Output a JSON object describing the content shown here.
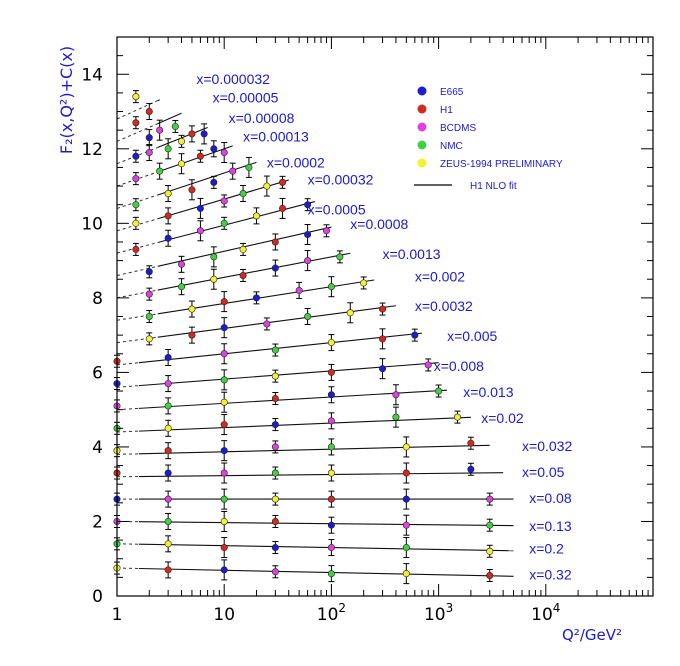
{
  "chart_data": {
    "type": "scatter",
    "title": "",
    "xlabel": "Q²/GeV²",
    "ylabel": "F₂(x,Q²)+C(x)",
    "x_scale": "log",
    "xlim": [
      1,
      100000
    ],
    "ylim": [
      0,
      15
    ],
    "x_ticks": [
      {
        "value": 1,
        "label": "1",
        "sup": ""
      },
      {
        "value": 10,
        "label": "10",
        "sup": ""
      },
      {
        "value": 100,
        "label": "10",
        "sup": "2"
      },
      {
        "value": 1000,
        "label": "10",
        "sup": "3"
      },
      {
        "value": 10000,
        "label": "10",
        "sup": "4"
      }
    ],
    "y_ticks": [
      0,
      2,
      4,
      6,
      8,
      10,
      12,
      14
    ],
    "legend_position": "top-right",
    "legend": [
      {
        "name": "E665",
        "color": "#1c1cd0",
        "kind": "dot"
      },
      {
        "name": "H1",
        "color": "#d42a1e",
        "kind": "dot"
      },
      {
        "name": "BCDMS",
        "color": "#e040e0",
        "kind": "dot"
      },
      {
        "name": "NMC",
        "color": "#40d040",
        "kind": "dot"
      },
      {
        "name": "ZEUS-1994 PRELIMINARY",
        "color": "#f2f230",
        "kind": "dot"
      },
      {
        "name": "H1  NLO  fit",
        "color": "#000000",
        "kind": "line"
      }
    ],
    "bins": [
      {
        "label": "x=0.000032",
        "q2_range": [
          1.5,
          2.5
        ],
        "fit_at_q2_1": 12.8,
        "slope_per_decade": 1.3,
        "data_q2": [
          1.5,
          2
        ],
        "data_f2": [
          13.4,
          13.0
        ],
        "label_q2": 5.5,
        "label_y": 13.85
      },
      {
        "label": "x=0.00005",
        "q2_range": [
          1.5,
          4
        ],
        "fit_at_q2_1": 12.2,
        "slope_per_decade": 1.25,
        "data_q2": [
          1.5,
          2,
          2.5,
          3.5
        ],
        "data_f2": [
          12.7,
          12.3,
          12.5,
          12.6
        ],
        "label_q2": 7.8,
        "label_y": 13.35
      },
      {
        "label": "x=0.00008",
        "q2_range": [
          1.5,
          7
        ],
        "fit_at_q2_1": 11.6,
        "slope_per_decade": 1.15,
        "data_q2": [
          1.5,
          2,
          3,
          4,
          5,
          6.5
        ],
        "data_f2": [
          11.8,
          11.9,
          12.0,
          12.2,
          12.4,
          12.4
        ],
        "label_q2": 11,
        "label_y": 12.8
      },
      {
        "label": "x=0.00013",
        "q2_range": [
          1.5,
          12
        ],
        "fit_at_q2_1": 11.0,
        "slope_per_decade": 1.0,
        "data_q2": [
          1.5,
          2.5,
          4,
          6,
          8,
          10
        ],
        "data_f2": [
          11.2,
          11.4,
          11.6,
          11.8,
          12.0,
          11.9
        ],
        "label_q2": 15,
        "label_y": 12.3
      },
      {
        "label": "x=0.0002",
        "q2_range": [
          1.5,
          20
        ],
        "fit_at_q2_1": 10.4,
        "slope_per_decade": 0.95,
        "data_q2": [
          1.5,
          3,
          5,
          8,
          12,
          17
        ],
        "data_f2": [
          10.5,
          10.8,
          10.9,
          11.1,
          11.4,
          11.5
        ],
        "label_q2": 25,
        "label_y": 11.6
      },
      {
        "label": "x=0.00032",
        "q2_range": [
          1.5,
          40
        ],
        "fit_at_q2_1": 9.8,
        "slope_per_decade": 0.85,
        "data_q2": [
          1.5,
          3,
          6,
          10,
          15,
          25,
          35
        ],
        "data_f2": [
          10.0,
          10.2,
          10.4,
          10.6,
          10.8,
          11.0,
          11.1
        ],
        "label_q2": 60,
        "label_y": 11.15
      },
      {
        "label": "x=0.0005",
        "q2_range": [
          1.5,
          70
        ],
        "fit_at_q2_1": 9.2,
        "slope_per_decade": 0.75,
        "data_q2": [
          1.5,
          3,
          6,
          10,
          20,
          35,
          60
        ],
        "data_f2": [
          9.3,
          9.6,
          9.8,
          10.0,
          10.2,
          10.4,
          10.5
        ],
        "label_q2": 60,
        "label_y": 10.35
      },
      {
        "label": "x=0.0008",
        "q2_range": [
          1.5,
          100
        ],
        "fit_at_q2_1": 8.6,
        "slope_per_decade": 0.65,
        "data_q2": [
          2,
          4,
          8,
          15,
          30,
          60,
          90
        ],
        "data_f2": [
          8.7,
          8.9,
          9.1,
          9.3,
          9.5,
          9.7,
          9.8
        ],
        "label_q2": 150,
        "label_y": 9.95
      },
      {
        "label": "x=0.0013",
        "q2_range": [
          1.5,
          150
        ],
        "fit_at_q2_1": 8.0,
        "slope_per_decade": 0.55,
        "data_q2": [
          2,
          4,
          8,
          15,
          30,
          60,
          120
        ],
        "data_f2": [
          8.1,
          8.3,
          8.5,
          8.6,
          8.8,
          9.0,
          9.1
        ],
        "label_q2": 300,
        "label_y": 9.15
      },
      {
        "label": "x=0.002",
        "q2_range": [
          1.5,
          250
        ],
        "fit_at_q2_1": 7.4,
        "slope_per_decade": 0.45,
        "data_q2": [
          2,
          5,
          10,
          20,
          50,
          100,
          200
        ],
        "data_f2": [
          7.5,
          7.7,
          7.9,
          8.0,
          8.2,
          8.3,
          8.4
        ],
        "label_q2": 600,
        "label_y": 8.55
      },
      {
        "label": "x=0.0032",
        "q2_range": [
          1.5,
          400
        ],
        "fit_at_q2_1": 6.8,
        "slope_per_decade": 0.38,
        "data_q2": [
          2,
          5,
          10,
          25,
          60,
          150,
          300
        ],
        "data_f2": [
          6.9,
          7.0,
          7.2,
          7.3,
          7.5,
          7.6,
          7.7
        ],
        "label_q2": 600,
        "label_y": 7.75
      },
      {
        "label": "x=0.005",
        "q2_range": [
          1,
          700
        ],
        "fit_at_q2_1": 6.2,
        "slope_per_decade": 0.3,
        "data_q2": [
          1,
          3,
          10,
          30,
          100,
          300,
          600
        ],
        "data_f2": [
          6.3,
          6.4,
          6.5,
          6.6,
          6.8,
          6.9,
          7.0
        ],
        "label_q2": 1200,
        "label_y": 6.95
      },
      {
        "label": "x=0.008",
        "q2_range": [
          1,
          1000
        ],
        "fit_at_q2_1": 5.6,
        "slope_per_decade": 0.22,
        "data_q2": [
          1,
          3,
          10,
          30,
          100,
          300,
          800
        ],
        "data_f2": [
          5.7,
          5.7,
          5.8,
          5.9,
          6.0,
          6.1,
          6.2
        ],
        "label_q2": 900,
        "label_y": 6.15
      },
      {
        "label": "x=0.013",
        "q2_range": [
          1,
          1200
        ],
        "fit_at_q2_1": 5.0,
        "slope_per_decade": 0.17,
        "data_q2": [
          1,
          3,
          10,
          30,
          100,
          400,
          1000
        ],
        "data_f2": [
          5.1,
          5.1,
          5.2,
          5.3,
          5.4,
          5.4,
          5.5
        ],
        "label_q2": 1700,
        "label_y": 5.45
      },
      {
        "label": "x=0.02",
        "q2_range": [
          1,
          2000
        ],
        "fit_at_q2_1": 4.4,
        "slope_per_decade": 0.12,
        "data_q2": [
          1,
          3,
          10,
          30,
          100,
          400,
          1500
        ],
        "data_f2": [
          4.5,
          4.5,
          4.6,
          4.6,
          4.7,
          4.8,
          4.8
        ],
        "label_q2": 2500,
        "label_y": 4.75
      },
      {
        "label": "x=0.032",
        "q2_range": [
          1,
          3000
        ],
        "fit_at_q2_1": 3.8,
        "slope_per_decade": 0.07,
        "data_q2": [
          1,
          3,
          10,
          30,
          100,
          500,
          2000
        ],
        "data_f2": [
          3.9,
          3.9,
          3.9,
          4.0,
          4.0,
          4.0,
          4.1
        ],
        "label_q2": 6000,
        "label_y": 4.0
      },
      {
        "label": "x=0.05",
        "q2_range": [
          1,
          4000
        ],
        "fit_at_q2_1": 3.2,
        "slope_per_decade": 0.03,
        "data_q2": [
          1,
          3,
          10,
          30,
          100,
          500,
          2000
        ],
        "data_f2": [
          3.3,
          3.3,
          3.3,
          3.3,
          3.3,
          3.3,
          3.4
        ],
        "label_q2": 6000,
        "label_y": 3.3
      },
      {
        "label": "x=0.08",
        "q2_range": [
          1,
          5000
        ],
        "fit_at_q2_1": 2.6,
        "slope_per_decade": 0.0,
        "data_q2": [
          1,
          3,
          10,
          30,
          100,
          500,
          3000
        ],
        "data_f2": [
          2.6,
          2.6,
          2.6,
          2.6,
          2.6,
          2.6,
          2.6
        ],
        "label_q2": 7000,
        "label_y": 2.6
      },
      {
        "label": "x=0.13",
        "q2_range": [
          1,
          5000
        ],
        "fit_at_q2_1": 2.0,
        "slope_per_decade": -0.03,
        "data_q2": [
          1,
          3,
          10,
          30,
          100,
          500,
          3000
        ],
        "data_f2": [
          2.0,
          2.0,
          2.0,
          2.0,
          1.9,
          1.9,
          1.9
        ],
        "label_q2": 7000,
        "label_y": 1.85
      },
      {
        "label": "x=0.2",
        "q2_range": [
          1,
          5000
        ],
        "fit_at_q2_1": 1.4,
        "slope_per_decade": -0.05,
        "data_q2": [
          1,
          3,
          10,
          30,
          100,
          500,
          3000
        ],
        "data_f2": [
          1.4,
          1.4,
          1.3,
          1.3,
          1.3,
          1.3,
          1.2
        ],
        "label_q2": 7000,
        "label_y": 1.25
      },
      {
        "label": "x=0.32",
        "q2_range": [
          1,
          5000
        ],
        "fit_at_q2_1": 0.75,
        "slope_per_decade": -0.06,
        "data_q2": [
          1,
          3,
          10,
          30,
          100,
          500,
          3000
        ],
        "data_f2": [
          0.75,
          0.7,
          0.7,
          0.65,
          0.6,
          0.6,
          0.55
        ],
        "label_q2": 7000,
        "label_y": 0.55
      }
    ]
  }
}
